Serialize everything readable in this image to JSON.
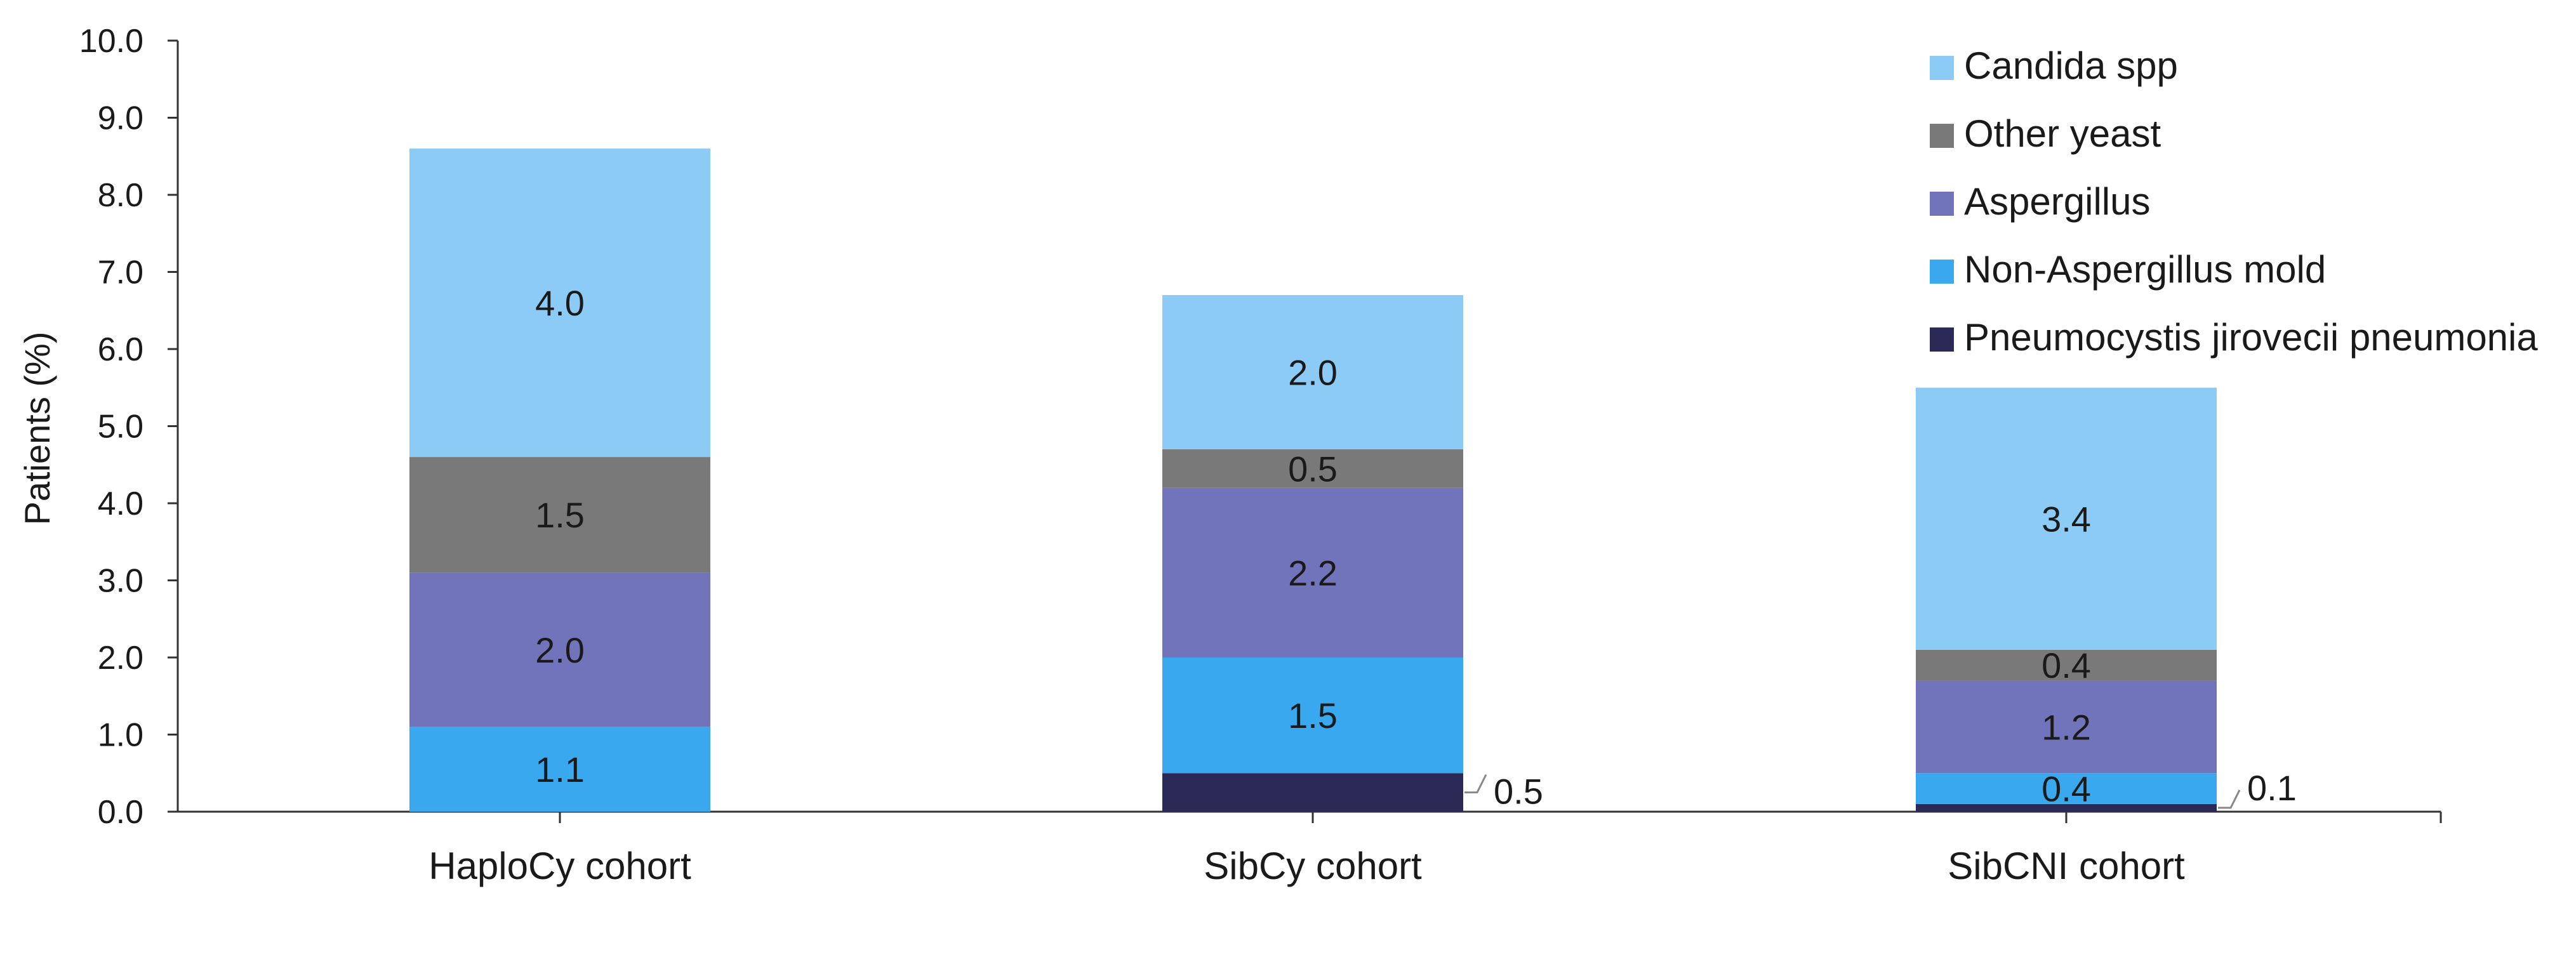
{
  "chart_data": {
    "type": "bar",
    "stacked": true,
    "ylabel": "Patients (%)",
    "xlabel": "",
    "ylim": [
      0,
      10
    ],
    "yticks": [
      "0.0",
      "1.0",
      "2.0",
      "3.0",
      "4.0",
      "5.0",
      "6.0",
      "7.0",
      "8.0",
      "9.0",
      "10.0"
    ],
    "categories": [
      "HaploCy cohort",
      "SibCy cohort",
      "SibCNI cohort"
    ],
    "legend_position": "top-right",
    "series": [
      {
        "name": "Pneumocystis jirovecii pneumonia",
        "color": "#2b2a57",
        "values": [
          0,
          0.5,
          0.1
        ],
        "labels": [
          "",
          "0.5",
          "0.1"
        ],
        "label_outside": [
          false,
          true,
          true
        ]
      },
      {
        "name": "Non-Aspergillus mold",
        "color": "#3aa8ee",
        "values": [
          1.1,
          1.5,
          0.4
        ],
        "labels": [
          "1.1",
          "1.5",
          "0.4"
        ],
        "label_outside": [
          false,
          false,
          false
        ]
      },
      {
        "name": "Aspergillus",
        "color": "#7274bb",
        "values": [
          2.0,
          2.2,
          1.2
        ],
        "labels": [
          "2.0",
          "2.2",
          "1.2"
        ],
        "label_outside": [
          false,
          false,
          false
        ]
      },
      {
        "name": "Other yeast",
        "color": "#797979",
        "values": [
          1.5,
          0.5,
          0.4
        ],
        "labels": [
          "1.5",
          "0.5",
          "0.4"
        ],
        "label_outside": [
          false,
          false,
          false
        ]
      },
      {
        "name": "Candida spp",
        "color": "#8bcbf5",
        "values": [
          4.0,
          2.0,
          3.4
        ],
        "labels": [
          "4.0",
          "2.0",
          "3.4"
        ],
        "label_outside": [
          false,
          false,
          false
        ]
      }
    ],
    "legend_order": [
      "Candida spp",
      "Other yeast",
      "Aspergillus",
      "Non-Aspergillus mold",
      "Pneumocystis jirovecii pneumonia"
    ]
  }
}
